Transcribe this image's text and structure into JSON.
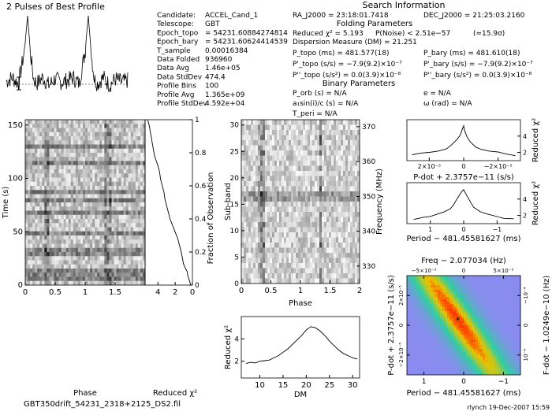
{
  "page": {
    "title": "2 Pulses of Best Profile",
    "section_title": "Search Information",
    "folding_title": "Folding Parameters",
    "binary_title": "Binary Parameters",
    "file_label": "GBT350drift_54231_2318+2125_DS2.fil",
    "footer": "rlynch 19-Dec-2007 15:59"
  },
  "info_left": [
    {
      "label": "Candidate:",
      "value": "ACCEL_Cand_1"
    },
    {
      "label": "Telescope:",
      "value": "GBT"
    },
    {
      "label": "Epoch_topo",
      "value": "= 54231.60884274814"
    },
    {
      "label": "Epoch_bary",
      "value": "= 54231.60624414539"
    },
    {
      "label": "T_sample",
      "value": "0.00016384"
    },
    {
      "label": "Data Folded",
      "value": "936960"
    },
    {
      "label": "Data Avg",
      "value": "1.46e+05"
    },
    {
      "label": "Data StdDev",
      "value": "474.4"
    },
    {
      "label": "Profile Bins",
      "value": "100"
    },
    {
      "label": "Profile Avg",
      "value": "1.365e+09"
    },
    {
      "label": "Profile StdDev",
      "value": "4.592e+04"
    }
  ],
  "info_right": {
    "ra": "RA_J2000 = 23:18:01.7418",
    "dec": "DEC_J2000 = 21:25:03.2160",
    "chi": "Reduced χ² = 5.193",
    "pnoise": "P(Noise) < 2.51e−57",
    "sigma": "(≈15.9σ)",
    "dm": "Dispersion Measure (DM) = 21.251",
    "p_topo": "P_topo (ms) = 481.577(18)",
    "p_bary": "P_bary (ms) = 481.610(18)",
    "pd_topo": "P'_topo (s/s) = −7.9(9.2)×10⁻⁷",
    "pd_bary": "P'_bary (s/s) = −7.9(9.2)×10⁻⁷",
    "pdd_topo": "P''_topo (s/s²) = 0.0(3.9)×10⁻⁸",
    "pdd_bary": "P''_bary (s/s²) = 0.0(3.9)×10⁻⁸",
    "porb": "P_orb (s) = N/A",
    "e": "e = N/A",
    "asini": "a₁sin(i)/c (s) = N/A",
    "omega": "ω (rad) = N/A",
    "tperi": "T_peri = N/A"
  },
  "colors": {
    "axis": "#000000",
    "curve": "#000000",
    "grid_dark": "#1a1a1a",
    "grid_light": "#f2f2f2",
    "heat_low": "#8a8af0",
    "heat_mid": "#2ecfa0",
    "heat_high": "#e8c500",
    "heat_peak": "#ff3a00"
  },
  "chart_data": [
    {
      "id": "profile",
      "type": "line",
      "title": "2 Pulses of Best Profile",
      "x": [
        0,
        0.1,
        0.2,
        0.3,
        0.35,
        0.4,
        0.45,
        0.5,
        0.6,
        0.7,
        0.8,
        0.9,
        1.0,
        1.1,
        1.2,
        1.3,
        1.35,
        1.4,
        1.45,
        1.5,
        1.6,
        1.7,
        1.8,
        1.9,
        2.0
      ],
      "values": [
        0.15,
        0.2,
        0.12,
        0.55,
        1.0,
        0.5,
        0.18,
        0.12,
        0.2,
        0.1,
        0.18,
        0.14,
        0.16,
        0.2,
        0.12,
        0.55,
        1.0,
        0.5,
        0.18,
        0.12,
        0.2,
        0.1,
        0.18,
        0.14,
        0.16
      ],
      "xlim": [
        0,
        2
      ],
      "ylim": [
        0,
        1
      ]
    },
    {
      "id": "time_phase",
      "type": "heatmap",
      "xlabel": "Phase",
      "ylabel": "Time (s)",
      "xticks": [
        "0",
        "0.5",
        "1",
        "1.5"
      ],
      "yticks": [
        "0",
        "50",
        "100",
        "150"
      ],
      "xlim": [
        0,
        2
      ],
      "ylim": [
        0,
        155
      ]
    },
    {
      "id": "chi_vs_time",
      "type": "line",
      "xlabel": "Reduced χ²",
      "ylabel": "Fraction of Observation",
      "xticks": [
        "4",
        "2",
        "0"
      ],
      "yticks": [
        "0",
        "0.2",
        "0.4",
        "0.6",
        "0.8",
        "1"
      ],
      "x": [
        0.2,
        0.3,
        0.55,
        0.6,
        0.8,
        1.05,
        1.15,
        1.3,
        1.5,
        1.7,
        2.0,
        2.3,
        2.6,
        2.8,
        3.0,
        3.2,
        3.3,
        3.5,
        3.7,
        3.8,
        4.0,
        4.2,
        4.4,
        4.5,
        4.6,
        4.7,
        4.8,
        4.9,
        5.0,
        5.1,
        5.2
      ],
      "y": [
        0.0,
        0.02,
        0.06,
        0.08,
        0.1,
        0.13,
        0.16,
        0.2,
        0.24,
        0.28,
        0.32,
        0.36,
        0.4,
        0.44,
        0.48,
        0.52,
        0.56,
        0.6,
        0.64,
        0.68,
        0.72,
        0.75,
        0.78,
        0.81,
        0.84,
        0.87,
        0.9,
        0.93,
        0.96,
        0.98,
        1.0
      ],
      "xlim": [
        5.5,
        0
      ],
      "ylim": [
        0,
        1
      ]
    },
    {
      "id": "subband",
      "type": "heatmap",
      "xlabel": "Phase",
      "ylabel": "Sub-band",
      "ylabel_right": "Frequency (MHz)",
      "xticks": [
        "0",
        "0.5",
        "1",
        "1.5",
        "2"
      ],
      "yticks": [
        "0",
        "5",
        "10",
        "15",
        "20",
        "25",
        "30"
      ],
      "yticks_right": [
        "330",
        "340",
        "350",
        "360",
        "370"
      ],
      "xlim": [
        0,
        2
      ],
      "ylim": [
        0,
        31
      ]
    },
    {
      "id": "dm_curve",
      "type": "line",
      "xlabel": "DM",
      "ylabel": "Reduced χ²",
      "xticks": [
        "10",
        "15",
        "20",
        "25",
        "30"
      ],
      "yticks": [
        "2",
        "4"
      ],
      "x": [
        7,
        8,
        9,
        10,
        11,
        12,
        13,
        14,
        15,
        16,
        17,
        18,
        19,
        20,
        21,
        22,
        23,
        24,
        25,
        26,
        27,
        28,
        29,
        30,
        31
      ],
      "y": [
        1.8,
        1.9,
        1.85,
        2.0,
        2.05,
        2.1,
        2.3,
        2.5,
        2.8,
        3.1,
        3.5,
        3.9,
        4.3,
        4.8,
        5.1,
        5.0,
        4.7,
        4.3,
        3.8,
        3.4,
        3.0,
        2.7,
        2.5,
        2.3,
        2.2
      ],
      "xlim": [
        6,
        31.5
      ],
      "ylim": [
        0.5,
        6
      ]
    },
    {
      "id": "pdot_curve",
      "type": "line",
      "xlabel": "P-dot + 2.3757e−11 (s/s)",
      "ylabel": "Reduced χ²",
      "xticks": [
        "2×10⁻⁵",
        "0",
        "−2×10⁻⁵"
      ],
      "yticks": [
        "2",
        "4"
      ],
      "x": [
        3,
        2.5,
        2,
        1.5,
        1,
        0.7,
        0.4,
        0.2,
        0.05,
        0,
        -0.05,
        -0.2,
        -0.4,
        -0.7,
        -1,
        -1.5,
        -2,
        -2.5,
        -3
      ],
      "y": [
        1.7,
        1.9,
        2.1,
        2.2,
        2.5,
        2.9,
        3.5,
        4.2,
        5.0,
        5.2,
        4.6,
        3.9,
        3.2,
        2.7,
        2.4,
        2.2,
        2.0,
        1.8,
        1.7
      ],
      "xlim": [
        3.3,
        -3.3
      ],
      "ylim": [
        1,
        6
      ]
    },
    {
      "id": "period_curve",
      "type": "line",
      "xlabel": "Period − 481.45581627 (ms)",
      "ylabel": "Reduced χ²",
      "xticks": [
        "1",
        "0",
        "−1"
      ],
      "yticks": [
        "2",
        "4"
      ],
      "x": [
        1.5,
        1.2,
        1.0,
        0.8,
        0.6,
        0.4,
        0.3,
        0.2,
        0.1,
        0.05,
        0,
        -0.1,
        -0.2,
        -0.3,
        -0.5,
        -0.7,
        -1.0,
        -1.2,
        -1.5
      ],
      "y": [
        1.5,
        1.7,
        1.9,
        2.1,
        2.4,
        2.9,
        3.4,
        4.0,
        4.6,
        5.0,
        5.1,
        4.3,
        3.6,
        3.0,
        2.5,
        2.2,
        1.9,
        1.7,
        1.6
      ],
      "xlim": [
        1.7,
        -1.7
      ],
      "ylim": [
        1,
        6
      ]
    },
    {
      "id": "ppdot",
      "type": "heatmap",
      "title": "Freq − 2.077034 (Hz)",
      "xlabel": "Period − 481.45581627 (ms)",
      "ylabel": "P-dot + 2.3757e−11 (s/s)",
      "ylabel_right": "F-dot − 1.0249e−10 (Hz)",
      "xticks": [
        "1",
        "0",
        "−1"
      ],
      "xticks_top": [
        "−5×10⁻³",
        "0",
        "5×10⁻³"
      ],
      "yticks": [
        "−2×10⁻⁵",
        "0",
        "2×10⁻⁵"
      ],
      "yticks_right": [
        "10⁻⁴",
        "0",
        "−10⁻⁴"
      ]
    }
  ]
}
